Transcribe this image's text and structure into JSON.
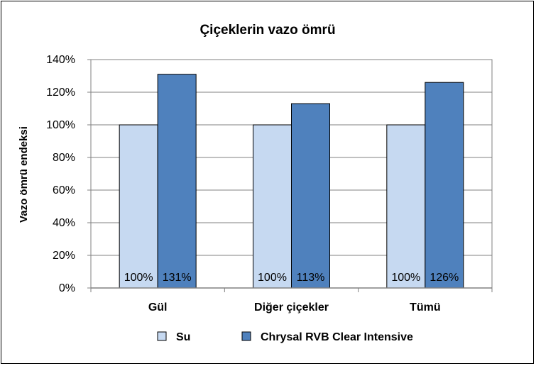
{
  "chart_data": {
    "type": "bar",
    "title": "Çiçeklerin vazo ömrü",
    "xlabel": "",
    "ylabel": "Vazo ömrü endeksi",
    "categories": [
      "Gül",
      "Diğer çiçekler",
      "Tümü"
    ],
    "series": [
      {
        "name": "Su",
        "values": [
          100,
          100,
          100
        ],
        "labels": [
          "100%",
          "100%",
          "100%"
        ],
        "color": "#c6d9f1"
      },
      {
        "name": "Chrysal RVB Clear Intensive",
        "values": [
          131,
          113,
          126
        ],
        "labels": [
          "131%",
          "113%",
          "126%"
        ],
        "color": "#4f81bd"
      }
    ],
    "ylim": [
      0,
      140
    ],
    "yticks": [
      0,
      20,
      40,
      60,
      80,
      100,
      120,
      140
    ],
    "ytick_labels": [
      "0%",
      "20%",
      "40%",
      "60%",
      "80%",
      "100%",
      "120%",
      "140%"
    ],
    "grid": true,
    "legend_position": "bottom"
  }
}
